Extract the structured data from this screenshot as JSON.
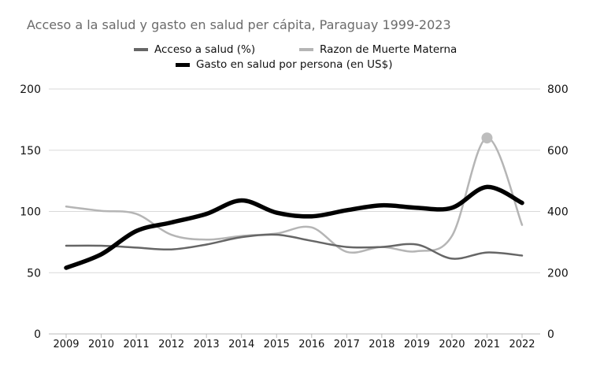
{
  "chart_data": {
    "type": "line",
    "title": "Acceso a la salud y gasto en salud per cápita, Paraguay 1999-2023",
    "x": [
      2009,
      2010,
      2011,
      2012,
      2013,
      2014,
      2015,
      2016,
      2017,
      2018,
      2019,
      2020,
      2021,
      2022
    ],
    "y_left": {
      "range": [
        0,
        200
      ],
      "ticks": [
        0,
        50,
        100,
        150,
        200
      ]
    },
    "y_right": {
      "range": [
        0,
        800
      ],
      "ticks": [
        0,
        200,
        400,
        600,
        800
      ]
    },
    "grid": true,
    "legend": "top",
    "series": [
      {
        "name": "Acceso a salud (%)",
        "axis": "left",
        "color": "#666666",
        "values": [
          72,
          72,
          70.5,
          69,
          73,
          79,
          81,
          76,
          71,
          71,
          73,
          61.5,
          66.5,
          64
        ]
      },
      {
        "name": "Razon de Muerte Materna",
        "axis": "left",
        "color": "#b5b5b5",
        "values": [
          104,
          100.5,
          98,
          81,
          77,
          80,
          82,
          87,
          67,
          71,
          67.5,
          80,
          160,
          89
        ],
        "highlight_year": 2021
      },
      {
        "name": "Gasto en salud por persona (en US$)",
        "axis": "right",
        "color": "#000000",
        "values": [
          216,
          260,
          336,
          364,
          392,
          436,
          396,
          384,
          404,
          420,
          412,
          412,
          480,
          428
        ]
      }
    ]
  }
}
